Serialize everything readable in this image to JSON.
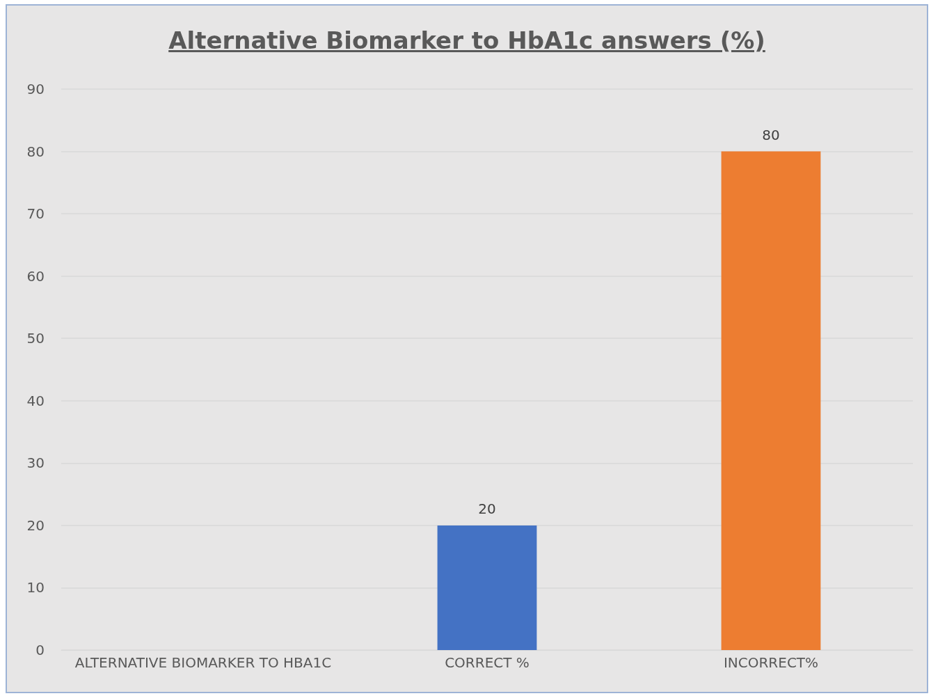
{
  "chart_data": {
    "type": "bar",
    "title": "Alternative Biomarker to HbA1c answers (%)",
    "categories": [
      "ALTERNATIVE BIOMARKER TO HBA1C",
      "CORRECT %",
      "INCORRECT%"
    ],
    "values": [
      null,
      20,
      80
    ],
    "colors": [
      "#4472c4",
      "#4472c4",
      "#ed7d31"
    ],
    "ylim": [
      0,
      90
    ],
    "yticks": [
      0,
      10,
      20,
      30,
      40,
      50,
      60,
      70,
      80,
      90
    ],
    "grid": "y",
    "data_labels": true
  }
}
